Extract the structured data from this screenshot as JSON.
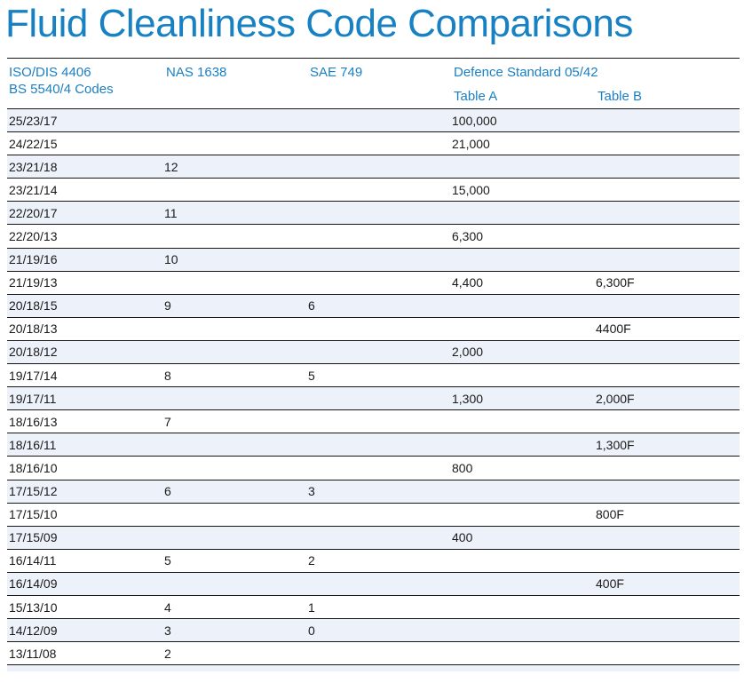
{
  "page": {
    "title": "Fluid Cleanliness Code Comparisons"
  },
  "colors": {
    "accent_blue_title": "#1781c3",
    "accent_blue_header": "#1b7fc2",
    "row_alt_background": "#edf2fa",
    "rule_line": "#161616",
    "cell_text": "#1a1a1a"
  },
  "table": {
    "headers": {
      "col1_line1": "ISO/DIS 4406",
      "col1_line2": "BS 5540/4 Codes",
      "col2": "NAS 1638",
      "col3": "SAE 749",
      "col4_group": "Defence Standard 05/42",
      "col4_sub": "Table A",
      "col5_sub": "Table B"
    },
    "rows": [
      [
        "25/23/17",
        "",
        "",
        "100,000",
        ""
      ],
      [
        "24/22/15",
        "",
        "",
        "21,000",
        ""
      ],
      [
        "23/21/18",
        "12",
        "",
        "",
        ""
      ],
      [
        "23/21/14",
        "",
        "",
        "15,000",
        ""
      ],
      [
        "22/20/17",
        "11",
        "",
        "",
        ""
      ],
      [
        "22/20/13",
        "",
        "",
        "6,300",
        ""
      ],
      [
        "21/19/16",
        "10",
        "",
        "",
        ""
      ],
      [
        "21/19/13",
        "",
        "",
        "4,400",
        "6,300F"
      ],
      [
        "20/18/15",
        "9",
        "6",
        "",
        ""
      ],
      [
        "20/18/13",
        "",
        "",
        "",
        "4400F"
      ],
      [
        "20/18/12",
        "",
        "",
        "2,000",
        ""
      ],
      [
        "19/17/14",
        "8",
        "5",
        "",
        ""
      ],
      [
        "19/17/11",
        "",
        "",
        "1,300",
        "2,000F"
      ],
      [
        "18/16/13",
        "7",
        "",
        "",
        ""
      ],
      [
        "18/16/11",
        "",
        "",
        "",
        "1,300F"
      ],
      [
        "18/16/10",
        "",
        "",
        "800",
        ""
      ],
      [
        "17/15/12",
        "6",
        "3",
        "",
        ""
      ],
      [
        "17/15/10",
        "",
        "",
        "",
        "800F"
      ],
      [
        "17/15/09",
        "",
        "",
        "400",
        ""
      ],
      [
        "16/14/11",
        "5",
        "2",
        "",
        ""
      ],
      [
        "16/14/09",
        "",
        "",
        "",
        "400F"
      ],
      [
        "15/13/10",
        "4",
        "1",
        "",
        ""
      ],
      [
        "14/12/09",
        "3",
        "0",
        "",
        ""
      ],
      [
        "13/11/08",
        "2",
        "",
        "",
        ""
      ]
    ]
  }
}
